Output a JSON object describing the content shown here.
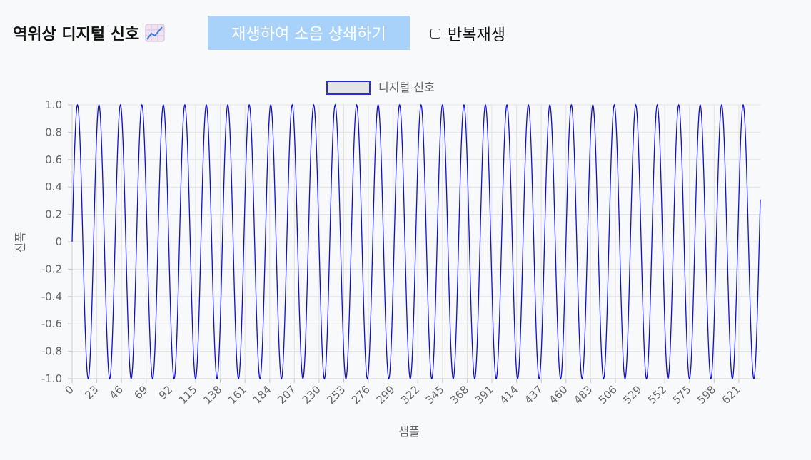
{
  "header": {
    "title": "역위상 디지털 신호",
    "title_icon": "chart-increasing-icon",
    "play_button_label": "재생하여 소음 상쇄하기",
    "loop_label": "반복재생",
    "loop_checked": false
  },
  "colors": {
    "line": "#1010d0",
    "legend_fill": "#e4e4e4",
    "legend_border": "#2a2ad6",
    "button": "#a9d2fb",
    "grid": "#e3e3e3",
    "background": "#f8f9fa"
  },
  "chart_data": {
    "type": "line",
    "legend": [
      "디지털 신호"
    ],
    "legend_position": "top-center",
    "xlabel": "샘플",
    "ylabel": "진폭",
    "ylim": [
      -1.0,
      1.0
    ],
    "xlim": [
      0,
      641
    ],
    "x_ticks": [
      0,
      23,
      46,
      69,
      92,
      115,
      138,
      161,
      184,
      207,
      230,
      253,
      276,
      299,
      322,
      345,
      368,
      391,
      414,
      437,
      460,
      483,
      506,
      529,
      552,
      575,
      598,
      621
    ],
    "y_ticks": [
      "1.0",
      "0.8",
      "0.6",
      "0.4",
      "0.2",
      "0",
      "-0.2",
      "-0.4",
      "-0.6",
      "-0.8",
      "-1.0"
    ],
    "grid": true,
    "series": [
      {
        "name": "디지털 신호",
        "formula": "y = sin(2*pi*x/20)",
        "period_samples": 20,
        "amplitude": 1.0,
        "x_start": 0,
        "x_end": 641
      }
    ]
  }
}
